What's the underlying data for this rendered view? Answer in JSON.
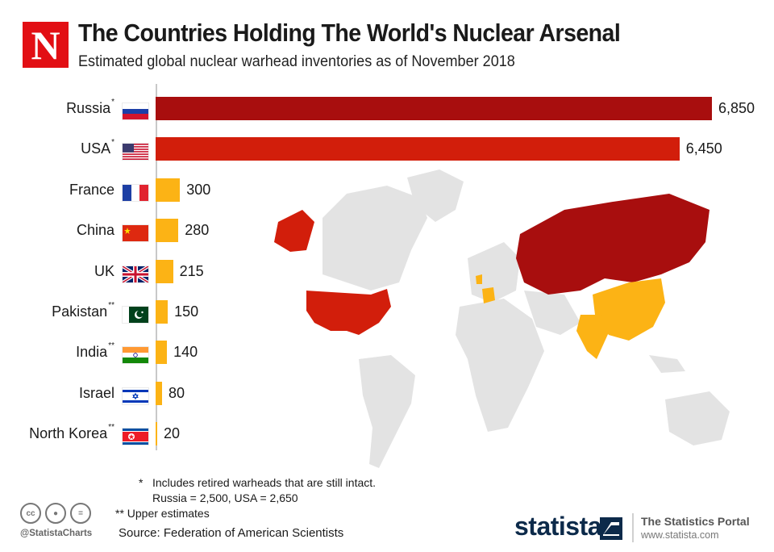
{
  "header": {
    "logo_letter": "N",
    "title": "The Countries Holding The World's Nuclear Arsenal",
    "subtitle": "Estimated global nuclear warhead inventories as of November 2018"
  },
  "colors": {
    "russia_bar": "#a80e0e",
    "usa_bar": "#d21e0b",
    "others_bar": "#fcb315",
    "map_land": "#e3e3e3",
    "axis": "#c8c8c8"
  },
  "chart_data": {
    "type": "bar",
    "orientation": "horizontal",
    "title": "The Countries Holding The World's Nuclear Arsenal",
    "subtitle": "Estimated global nuclear warhead inventories as of November 2018",
    "categories": [
      "Russia",
      "USA",
      "France",
      "China",
      "UK",
      "Pakistan",
      "India",
      "Israel",
      "North Korea"
    ],
    "markers": [
      "*",
      "*",
      "",
      "",
      "",
      "**",
      "**",
      "",
      "**"
    ],
    "values": [
      6850,
      6450,
      300,
      280,
      215,
      150,
      140,
      80,
      20
    ],
    "value_labels": [
      "6,850",
      "6,450",
      "300",
      "280",
      "215",
      "150",
      "140",
      "80",
      "20"
    ],
    "flags": [
      "russia-flag",
      "usa-flag",
      "france-flag",
      "china-flag",
      "uk-flag",
      "pakistan-flag",
      "india-flag",
      "israel-flag",
      "north-korea-flag"
    ],
    "xlim": [
      0,
      7000
    ],
    "grid": false,
    "legend": "none"
  },
  "footnotes": {
    "star_marker": "*",
    "star_line1": "Includes retired warheads that are still intact.",
    "star_line2": "Russia = 2,500, USA = 2,650",
    "double_star": "** Upper estimates"
  },
  "footer": {
    "handle": "@StatistaCharts",
    "source": "Source: Federation of American Scientists",
    "brand": "statista",
    "portal": "The Statistics Portal",
    "url": "www.statista.com",
    "cc_icons": [
      "cc-icon",
      "attribution-icon",
      "no-derivatives-icon"
    ]
  }
}
